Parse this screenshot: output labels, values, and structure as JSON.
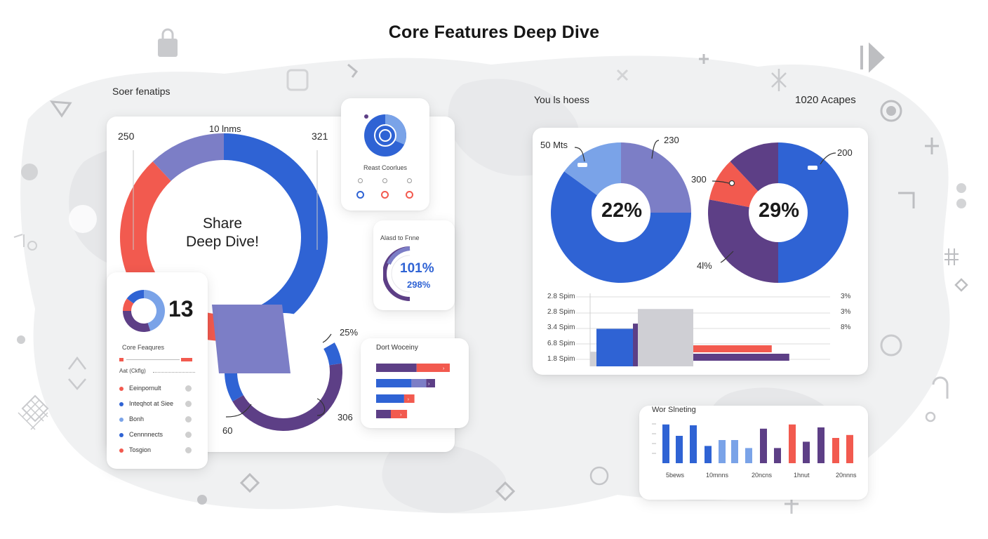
{
  "title": "Core Features Deep Dive",
  "colors": {
    "blue": "#2f63d4",
    "red": "#f25a4f",
    "purple": "#5d3f86",
    "lavender": "#7c7ec6",
    "lightblue": "#7aa3e8",
    "grey": "#cfcfd4"
  },
  "left_panel": {
    "header": "Soer fenatips",
    "tl_value": "250",
    "top_value": "10 lnms",
    "tr_value": "321",
    "center_line1": "Share",
    "center_line2": "Deep Dive!",
    "br_pct": "25%",
    "br_val": "306",
    "bl_val": "60"
  },
  "small_card": {
    "label": "Reast Coorlues",
    "dots": [
      {
        "color": "#2f63d4"
      },
      {
        "color": "#f25a4f"
      },
      {
        "color": "#f25a4f"
      }
    ]
  },
  "gauge_card": {
    "label": "Alasd to Fnne",
    "value1": "101%",
    "value2": "298%"
  },
  "legend_card": {
    "value": "13",
    "title": "Core Feaqures",
    "sub": "Aat (Ckflg)",
    "items": [
      {
        "label": "Eeinpornult",
        "color": "#f25a4f"
      },
      {
        "label": "Inteqhot at Siee",
        "color": "#2f63d4"
      },
      {
        "label": "Bonh",
        "color": "#7aa3e8"
      },
      {
        "label": "Cennnnects",
        "color": "#2f63d4"
      },
      {
        "label": "Tosgion",
        "color": "#f25a4f"
      }
    ]
  },
  "hbar_card": {
    "title": "Dort Woceiny"
  },
  "right_panel": {
    "header_left": "You ls hoess",
    "header_right": "1020 Acapes",
    "pie1_center": "22%",
    "pie2_center": "29%",
    "pie1_top": "230",
    "pie1_left": "50 Mts",
    "pie2_right": "200",
    "pie2_left": "300",
    "pie2_bottom": "4l%",
    "row_labels": [
      "2.8 Spim",
      "2.8 Spim",
      "3.4 Spim",
      "6.8 Spim",
      "1.8 Spim"
    ],
    "row_right": [
      "3%",
      "3%",
      "8%"
    ]
  },
  "vbar_card": {
    "title": "Wor Slneting",
    "xlabels": [
      "5bews",
      "10mnns",
      "20ncns",
      "1hnut",
      "20nnns"
    ]
  },
  "chart_data": [
    {
      "type": "pie",
      "name": "share-ring",
      "slices": [
        {
          "label": "250",
          "value": 50,
          "color": "#2f63d4"
        },
        {
          "label": "321",
          "value": 38,
          "color": "#f25a4f"
        },
        {
          "label": "",
          "value": 12,
          "color": "#7c7ec6"
        }
      ]
    },
    {
      "type": "pie",
      "name": "lower-ring",
      "slices": [
        {
          "label": "25%",
          "value": 6,
          "color": "#2f63d4"
        },
        {
          "label": "306",
          "value": 44,
          "color": "#5d3f86"
        },
        {
          "label": "60",
          "value": 30,
          "color": "#2f63d4"
        },
        {
          "label": "",
          "value": 20,
          "color": "#ffffff"
        }
      ]
    },
    {
      "type": "pie",
      "name": "pie-22",
      "slices": [
        {
          "label": "50 Mts",
          "value": 60,
          "color": "#2f63d4"
        },
        {
          "label": "230",
          "value": 15,
          "color": "#7aa3e8"
        },
        {
          "label": "",
          "value": 25,
          "color": "#7c7ec6"
        }
      ]
    },
    {
      "type": "pie",
      "name": "pie-29",
      "slices": [
        {
          "label": "200",
          "value": 50,
          "color": "#2f63d4"
        },
        {
          "label": "4l%",
          "value": 28,
          "color": "#5d3f86"
        },
        {
          "label": "300",
          "value": 10,
          "color": "#f25a4f"
        },
        {
          "label": "",
          "value": 12,
          "color": "#5d3f86"
        }
      ]
    },
    {
      "type": "pie",
      "name": "mini-donut",
      "slices": [
        {
          "value": 45,
          "color": "#7aa3e8"
        },
        {
          "value": 30,
          "color": "#5d3f86"
        },
        {
          "value": 10,
          "color": "#f25a4f"
        },
        {
          "value": 15,
          "color": "#2f63d4"
        }
      ]
    },
    {
      "type": "bar",
      "name": "horizontal-bars",
      "orientation": "horizontal",
      "rows": [
        [
          {
            "value": 55,
            "color": "#5d3f86"
          },
          {
            "value": 45,
            "color": "#f25a4f"
          }
        ],
        [
          {
            "value": 48,
            "color": "#2f63d4"
          },
          {
            "value": 20,
            "color": "#7c7ec6"
          },
          {
            "value": 12,
            "color": "#5d3f86"
          }
        ],
        [
          {
            "value": 38,
            "color": "#2f63d4"
          },
          {
            "value": 14,
            "color": "#f25a4f"
          }
        ],
        [
          {
            "value": 20,
            "color": "#5d3f86"
          },
          {
            "value": 22,
            "color": "#f25a4f"
          }
        ]
      ]
    },
    {
      "type": "bar",
      "name": "mixed-bars",
      "bars": [
        {
          "value": 1.4,
          "color": "#cfcfd4"
        },
        {
          "value": 3.6,
          "color": "#2f63d4"
        },
        {
          "value": 4.1,
          "color": "#5d3f86"
        },
        {
          "value": 5.5,
          "color": "#cfcfd4"
        },
        {
          "value": 2.6,
          "color": "#f25a4f"
        },
        {
          "value": 1.9,
          "color": "#5d3f86"
        }
      ],
      "ylim": [
        0,
        7
      ]
    },
    {
      "type": "bar",
      "name": "vertical-bars",
      "values": [
        9.2,
        6.5,
        9.0,
        4.1,
        5.5,
        5.5,
        3.6,
        8.2,
        3.6,
        9.2,
        5.1,
        8.5,
        6.0,
        6.7
      ],
      "colors": [
        "#2f63d4",
        "#2f63d4",
        "#2f63d4",
        "#2f63d4",
        "#7aa3e8",
        "#7aa3e8",
        "#7aa3e8",
        "#5d3f86",
        "#5d3f86",
        "#f25a4f",
        "#5d3f86",
        "#5d3f86",
        "#f25a4f",
        "#f25a4f"
      ],
      "ylim": [
        0,
        10
      ]
    }
  ]
}
